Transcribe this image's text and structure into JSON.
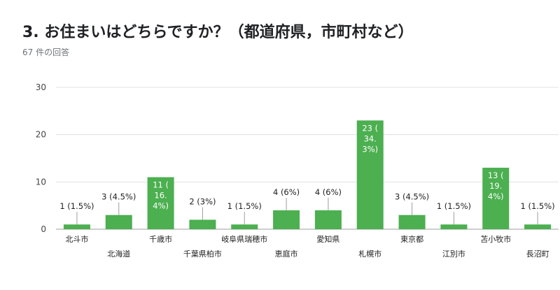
{
  "question": {
    "title": "3. お住まいはどちらですか？（都道府県，市町村など）",
    "response_count": "67 件の回答"
  },
  "colors": {
    "bar": "#4caf50",
    "gridline": "#e0e0e0",
    "axis": "#9e9e9e"
  },
  "chart_data": {
    "type": "bar",
    "title": "",
    "xlabel": "",
    "ylabel": "",
    "ylim": [
      0,
      30
    ],
    "yticks": [
      0,
      10,
      20,
      30
    ],
    "grid": true,
    "legend": "none",
    "categories": [
      "北斗市",
      "北海道",
      "千歳市",
      "千葉県柏市",
      "岐阜県瑞穂市",
      "恵庭市",
      "愛知県",
      "札幌市",
      "東京都",
      "江別市",
      "苫小牧市",
      "長沼町"
    ],
    "values": [
      1,
      3,
      11,
      2,
      1,
      4,
      4,
      23,
      3,
      1,
      13,
      1
    ],
    "data_labels": [
      "1 (1.5%)",
      "3 (4.5%)",
      "11 (16.4%)",
      "2 (3%)",
      "1 (1.5%)",
      "4 (6%)",
      "4 (6%)",
      "23 (34.3%)",
      "3 (4.5%)",
      "1 (1.5%)",
      "13 (19.4%)",
      "1 (1.5%)"
    ],
    "data_label_lines": [
      [
        "1 (1.5%)"
      ],
      [
        "3 (4.5%)"
      ],
      [
        "11 (",
        "16.",
        "4%)"
      ],
      [
        "2 (3%)"
      ],
      [
        "1 (1.5%)"
      ],
      [
        "4 (6%)"
      ],
      [
        "4 (6%)"
      ],
      [
        "23 (",
        "34.",
        "3%)"
      ],
      [
        "3 (4.5%)"
      ],
      [
        "1 (1.5%)"
      ],
      [
        "13 (",
        "19.",
        "4%)"
      ],
      [
        "1 (1.5%)"
      ]
    ]
  }
}
